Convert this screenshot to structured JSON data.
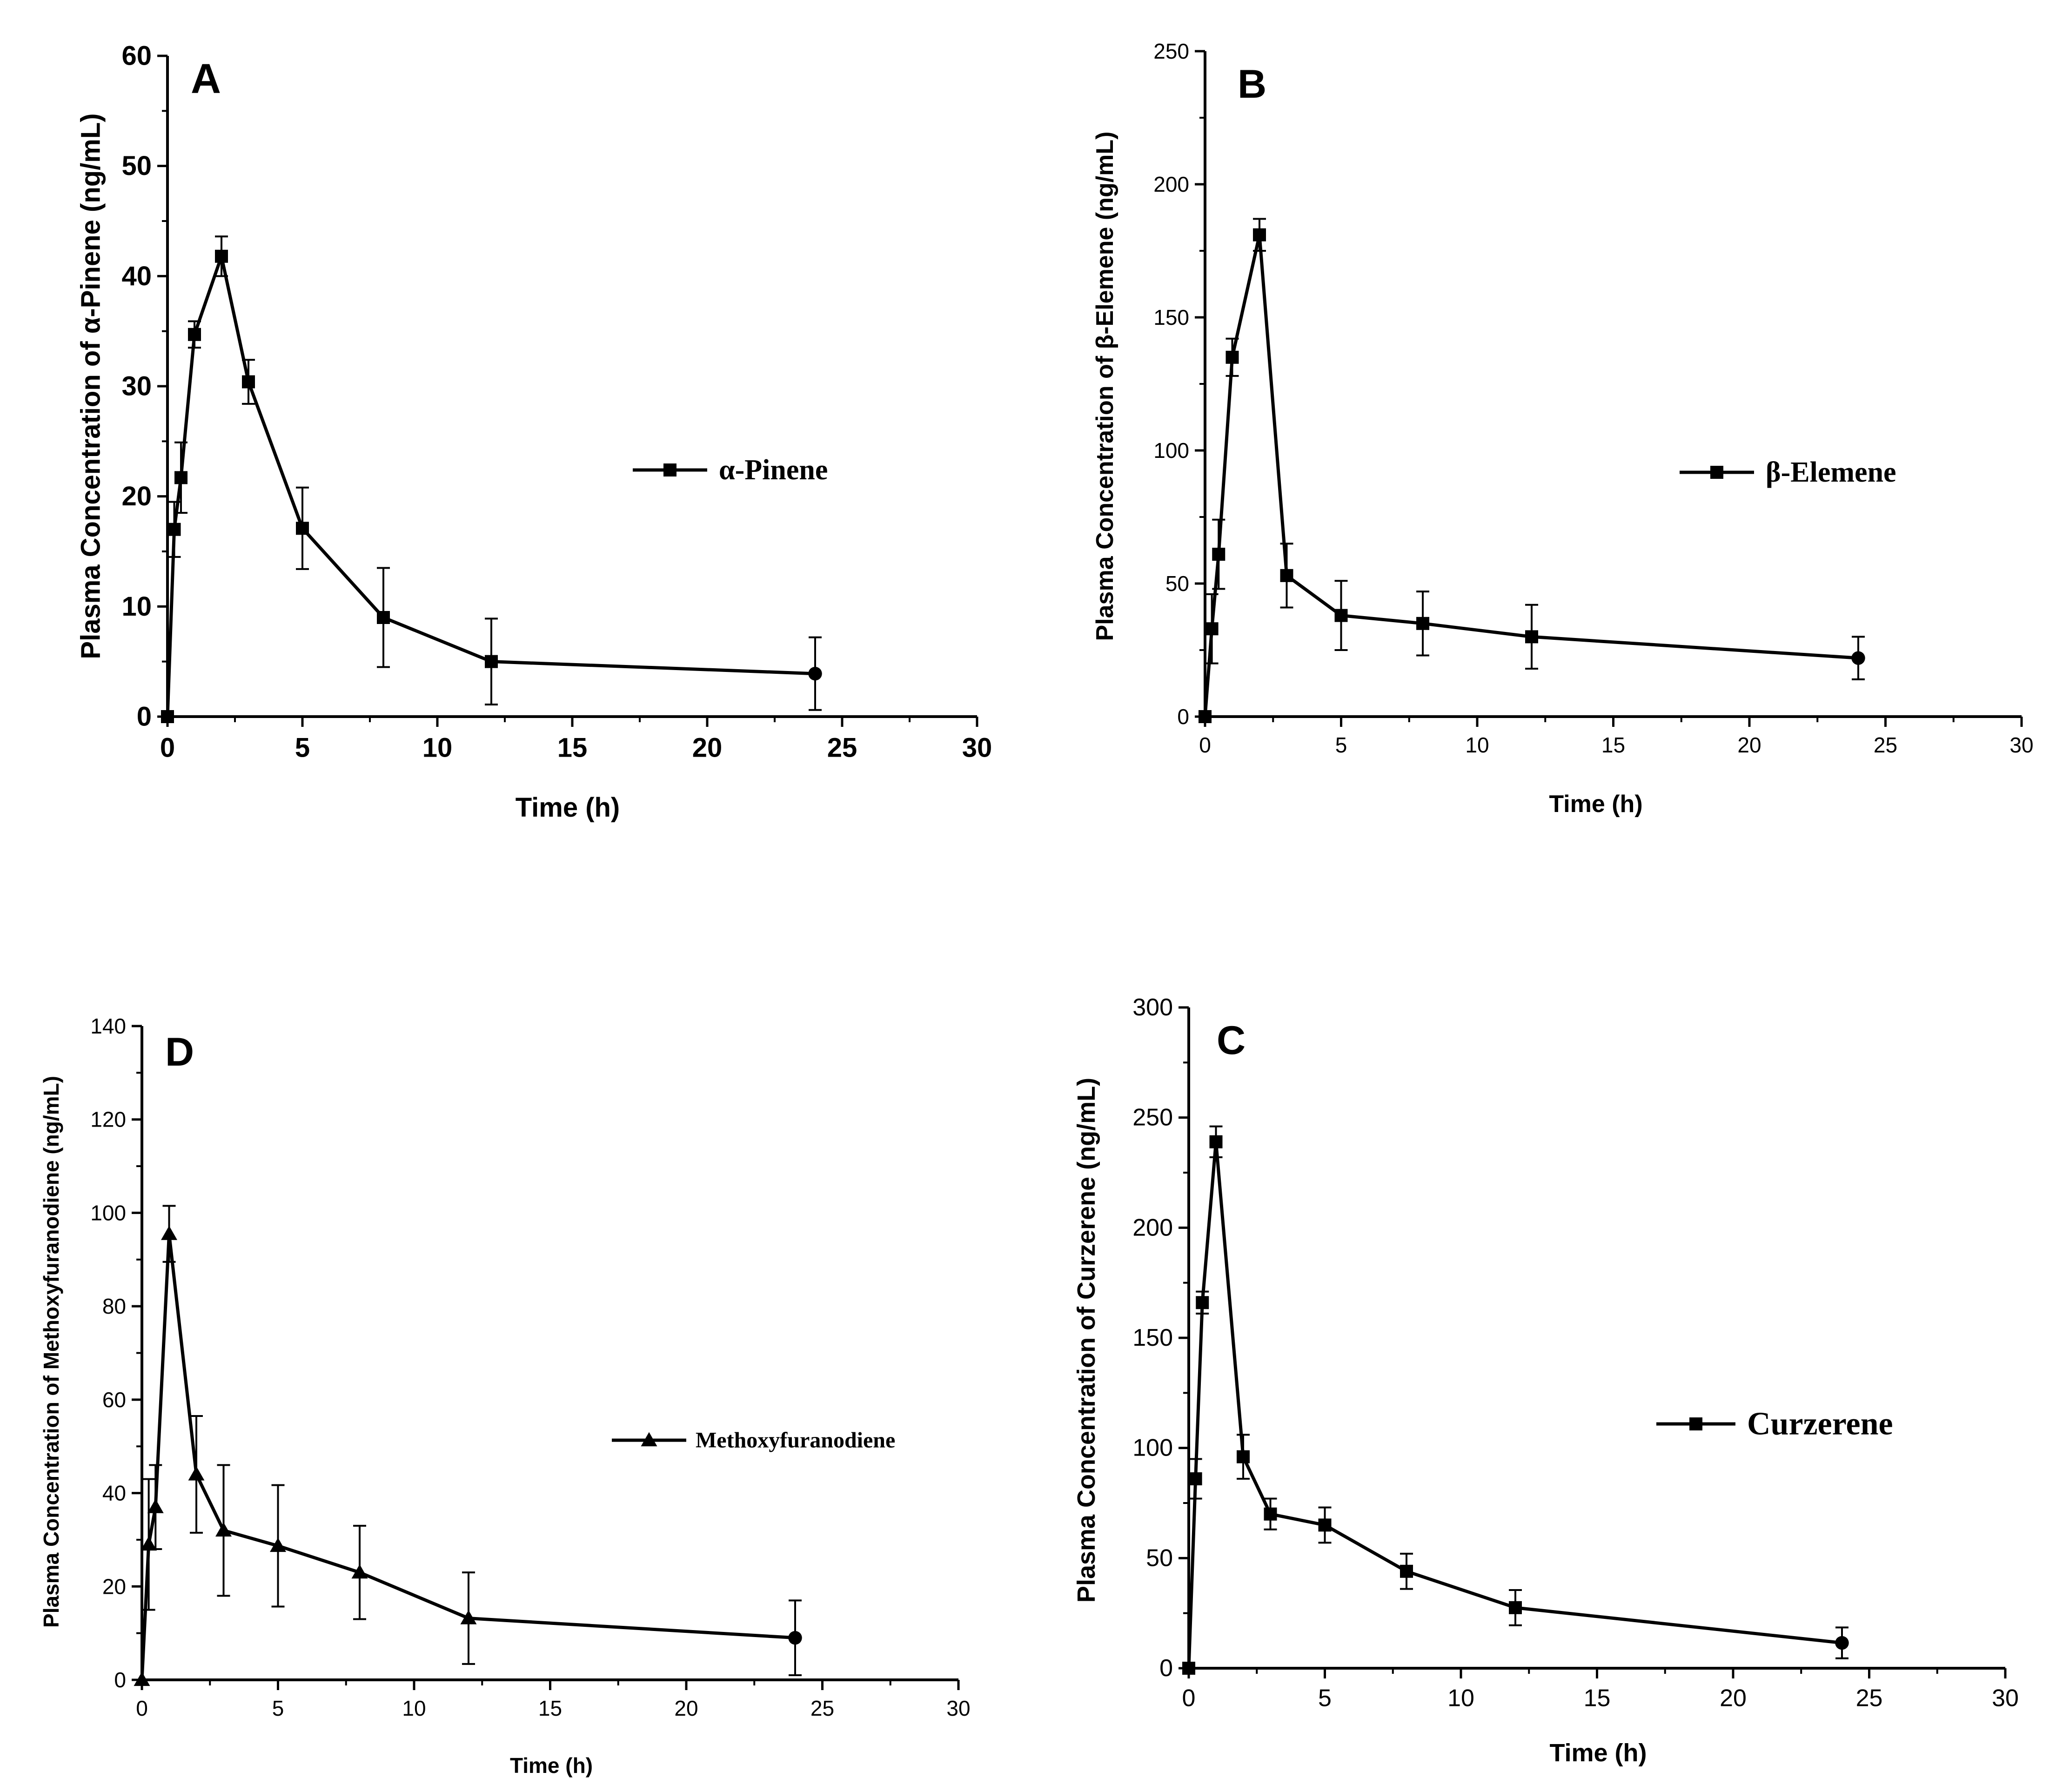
{
  "chart_data": [
    {
      "panel": "A",
      "type": "line",
      "xlabel": "Time (h)",
      "ylabel": "Plasma Concentration of α-Pinene (ng/mL)",
      "xlim": [
        0,
        30
      ],
      "ylim": [
        0,
        60
      ],
      "xticks": [
        "0",
        "5",
        "10",
        "15",
        "20",
        "25",
        "30"
      ],
      "yticks": [
        "0",
        "10",
        "20",
        "30",
        "40",
        "50",
        "60"
      ],
      "legend": "α-Pinene",
      "legend_position": "center-right",
      "series": [
        {
          "name": "α-Pinene",
          "marker": "square",
          "x": [
            0,
            0.25,
            0.5,
            1,
            2,
            3,
            5,
            8,
            12,
            24
          ],
          "y": [
            0,
            17,
            21.7,
            34.7,
            41.8,
            30.4,
            17.1,
            9.0,
            5.0,
            3.9
          ],
          "err": [
            0,
            2.5,
            3.2,
            1.2,
            1.8,
            2.0,
            3.7,
            4.5,
            3.9,
            3.3
          ],
          "last_marker": "circle"
        }
      ]
    },
    {
      "panel": "B",
      "type": "line",
      "xlabel": "Time (h)",
      "ylabel": "Plasma Concentration of β-Elemene (ng/mL)",
      "xlim": [
        0,
        30
      ],
      "ylim": [
        0,
        250
      ],
      "xticks": [
        "0",
        "5",
        "10",
        "15",
        "20",
        "25",
        "30"
      ],
      "yticks": [
        "0",
        "50",
        "100",
        "150",
        "200",
        "250"
      ],
      "legend": "β-Elemene",
      "legend_position": "center-right",
      "series": [
        {
          "name": "β-Elemene",
          "marker": "square",
          "x": [
            0,
            0.25,
            0.5,
            1,
            2,
            3,
            5,
            8,
            12,
            24
          ],
          "y": [
            0,
            33,
            61,
            135,
            181,
            53,
            38,
            35,
            30,
            22
          ],
          "err": [
            0,
            13,
            13,
            7,
            6,
            12,
            13,
            12,
            12,
            8
          ],
          "last_marker": "circle"
        }
      ]
    },
    {
      "panel": "D",
      "type": "line",
      "xlabel": "Time (h)",
      "ylabel": "Plasma Concentration of Methoxyfuranodiene (ng/mL)",
      "xlim": [
        0,
        30
      ],
      "ylim": [
        0,
        140
      ],
      "xticks": [
        "0",
        "5",
        "10",
        "15",
        "20",
        "25",
        "30"
      ],
      "yticks": [
        "0",
        "20",
        "40",
        "60",
        "80",
        "100",
        "120",
        "140"
      ],
      "legend": "Methoxyfuranodiene",
      "legend_position": "center-right",
      "series": [
        {
          "name": "Methoxyfuranodiene",
          "marker": "triangle",
          "x": [
            0,
            0.25,
            0.5,
            1,
            2,
            3,
            5,
            8,
            12,
            24
          ],
          "y": [
            0,
            29,
            37,
            95.5,
            44,
            32,
            28.7,
            23,
            13.2,
            9
          ],
          "err": [
            0,
            14,
            9,
            6,
            12.5,
            14,
            13,
            10,
            9.8,
            8
          ],
          "last_marker": "circle"
        }
      ]
    },
    {
      "panel": "C",
      "type": "line",
      "xlabel": "Time (h)",
      "ylabel": "Plasma Concentration of Curzerene (ng/mL)",
      "xlim": [
        0,
        30
      ],
      "ylim": [
        0,
        300
      ],
      "xticks": [
        "0",
        "5",
        "10",
        "15",
        "20",
        "25",
        "30"
      ],
      "yticks": [
        "0",
        "50",
        "100",
        "150",
        "200",
        "250",
        "300"
      ],
      "legend": "Curzerene",
      "legend_position": "center-right",
      "series": [
        {
          "name": "Curzerene",
          "marker": "square",
          "x": [
            0,
            0.25,
            0.5,
            1,
            2,
            3,
            5,
            8,
            12,
            24
          ],
          "y": [
            0,
            86,
            166,
            239,
            96,
            70,
            65,
            44,
            27.5,
            11.5
          ],
          "err": [
            0,
            9,
            5,
            7,
            10,
            7,
            8,
            8,
            8,
            7
          ],
          "last_marker": "circle"
        }
      ]
    }
  ]
}
